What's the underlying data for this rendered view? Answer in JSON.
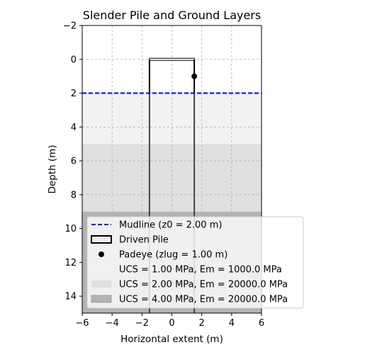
{
  "chart_data": {
    "type": "area",
    "title": "Slender Pile and Ground Layers",
    "xlabel": "Horizontal extent  (m)",
    "ylabel": "Depth (m)",
    "xlim": [
      -6,
      6
    ],
    "ylim": [
      15,
      -2
    ],
    "y_inverted": true,
    "grid": true,
    "legend_position": "lower-right",
    "x_ticks": [
      -6,
      -4,
      -2,
      0,
      2,
      4,
      6
    ],
    "x_tick_labels": [
      "−6",
      "−4",
      "−2",
      "0",
      "2",
      "4",
      "6"
    ],
    "y_ticks": [
      -2,
      0,
      2,
      4,
      6,
      8,
      10,
      12,
      14
    ],
    "y_tick_labels": [
      "−2",
      "0",
      "2",
      "4",
      "6",
      "8",
      "10",
      "12",
      "14"
    ],
    "layers": [
      {
        "name": "UCS = 1.00 MPa, Em = 1000.0 MPa",
        "top": 2,
        "bottom": 5,
        "color": "#f2f2f2"
      },
      {
        "name": "UCS = 2.00 MPa, Em = 20000.0 MPa",
        "top": 5,
        "bottom": 9,
        "color": "#e0e0e0"
      },
      {
        "name": "UCS = 4.00 MPa, Em = 20000.0 MPa",
        "top": 9,
        "bottom": 15,
        "color": "#b3b3b3"
      }
    ],
    "mudline": {
      "name": "Mudline (z0 = 2.00 m)",
      "depth": 2.0,
      "color": "#0000ff"
    },
    "pile": {
      "name": "Driven Pile",
      "x_left": -1.5,
      "x_right": 1.5,
      "head_depth": 0.0,
      "head_thickness": 0.1,
      "tip_depth": 15,
      "color": "#000000"
    },
    "padeye": {
      "name": "Padeye (zlug = 1.00 m)",
      "x": 1.5,
      "depth": 1.0,
      "color": "#000000"
    }
  }
}
